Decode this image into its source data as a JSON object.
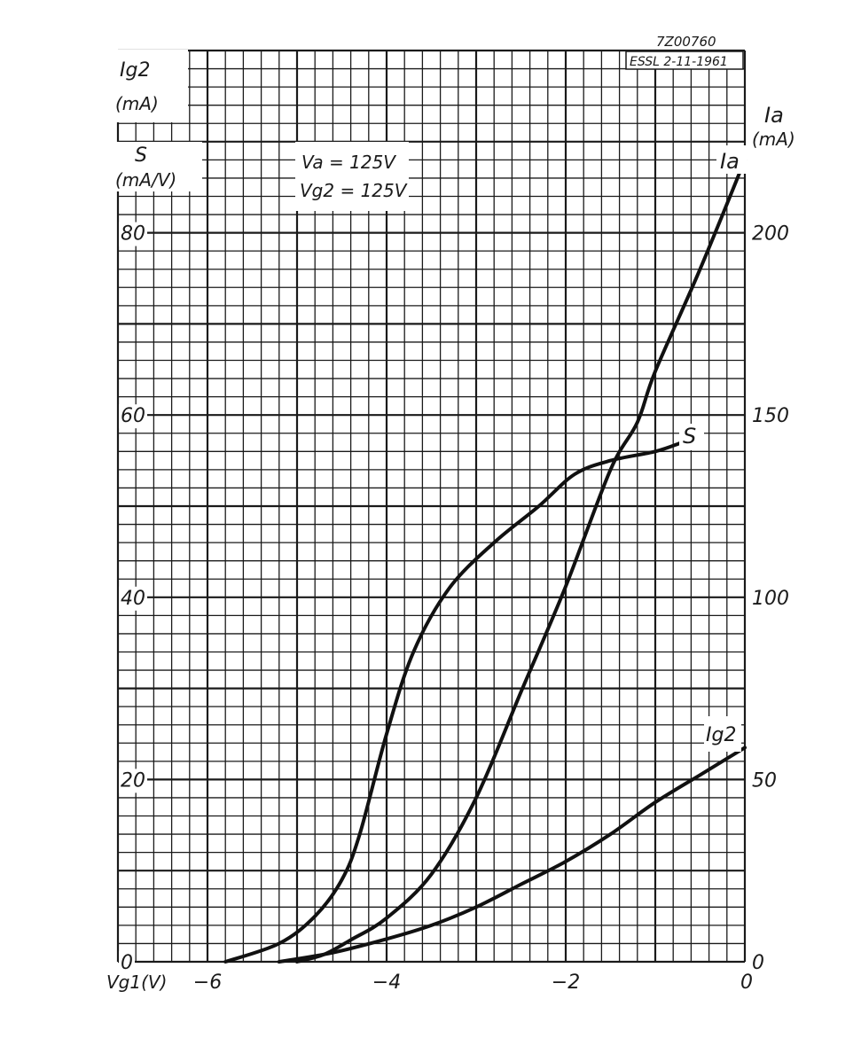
{
  "chart_data": {
    "type": "line",
    "drawing_number": "7Z00760",
    "stamp": "ESSL 2-11-1961",
    "conditions": [
      "Va = 125V",
      "Vg2 = 125V"
    ],
    "xlabel": "Vg1(V)",
    "xlim": [
      -7,
      0
    ],
    "xticks": [
      {
        "value": -6,
        "label": "−6"
      },
      {
        "value": -4,
        "label": "−4"
      },
      {
        "value": -2,
        "label": "−2"
      },
      {
        "value": 0,
        "label": "0"
      }
    ],
    "left_axis": {
      "label_top": [
        "Ig2",
        "(mA)"
      ],
      "label_bottom": [
        "S",
        "(mA/V)"
      ],
      "ylim": [
        0,
        100
      ],
      "ticks": [
        {
          "value": 0,
          "label": "0"
        },
        {
          "value": 20,
          "label": "20"
        },
        {
          "value": 40,
          "label": "40"
        },
        {
          "value": 60,
          "label": "60"
        },
        {
          "value": 80,
          "label": "80"
        }
      ]
    },
    "right_axis": {
      "label": [
        "Ia",
        "(mA)"
      ],
      "ylim": [
        0,
        250
      ],
      "ticks": [
        {
          "value": 0,
          "label": "0"
        },
        {
          "value": 50,
          "label": "50"
        },
        {
          "value": 100,
          "label": "100"
        },
        {
          "value": 150,
          "label": "150"
        },
        {
          "value": 200,
          "label": "200"
        }
      ]
    },
    "grid": true,
    "series": [
      {
        "name": "Ia",
        "axis": "right",
        "x": [
          -5.0,
          -4.7,
          -4.4,
          -4.0,
          -3.5,
          -3.0,
          -2.5,
          -2.0,
          -1.5,
          -1.2,
          -1.0,
          -0.5,
          0.0
        ],
        "y": [
          0,
          2,
          6,
          12,
          24,
          45,
          74,
          103,
          135,
          148,
          162,
          190,
          220
        ]
      },
      {
        "name": "S",
        "axis": "left",
        "x": [
          -5.8,
          -5.2,
          -4.8,
          -4.5,
          -4.3,
          -4.0,
          -3.7,
          -3.3,
          -2.8,
          -2.3,
          -1.9,
          -1.5,
          -1.0,
          -0.7
        ],
        "y": [
          0,
          2,
          5,
          9,
          14,
          25,
          34,
          41,
          46,
          50,
          53.5,
          55,
          56,
          57
        ]
      },
      {
        "name": "Ig2",
        "axis": "left",
        "x": [
          -5.2,
          -4.6,
          -4.0,
          -3.5,
          -3.0,
          -2.5,
          -2.0,
          -1.5,
          -1.0,
          -0.5,
          0.0
        ],
        "y": [
          0,
          1,
          2.5,
          4,
          6,
          8.5,
          11,
          14,
          17.5,
          20.5,
          23.5
        ]
      }
    ]
  }
}
